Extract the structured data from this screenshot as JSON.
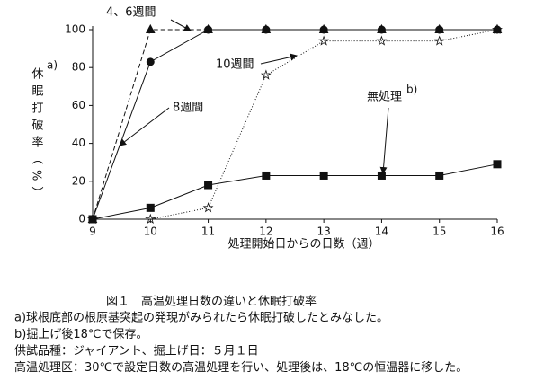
{
  "chart_data": {
    "type": "line",
    "title": "図１　高温処理日数の違いと休眠打破率",
    "xlabel": "処理開始日からの日数（週）",
    "ylabel": "休眠打破率（%）",
    "ylabel_note": "a)",
    "x": [
      9,
      10,
      11,
      12,
      13,
      14,
      15,
      16
    ],
    "xlim": [
      9,
      16
    ],
    "xticks": [
      9,
      10,
      11,
      12,
      13,
      14,
      15,
      16
    ],
    "ylim": [
      0,
      100
    ],
    "yticks": [
      0,
      20,
      40,
      60,
      80,
      100
    ],
    "series": [
      {
        "name": "4、6週間",
        "color": "#111111",
        "marker": "triangle",
        "dash": "5,3",
        "values": [
          0,
          100,
          100,
          100,
          100,
          100,
          100,
          100
        ]
      },
      {
        "name": "8週間",
        "color": "#111111",
        "marker": "circle",
        "dash": "none",
        "values": [
          0,
          83,
          100,
          100,
          100,
          100,
          100,
          100
        ]
      },
      {
        "name": "10週間",
        "color": "#111111",
        "marker": "star",
        "dash": "1,2",
        "values": [
          0,
          0,
          6,
          76,
          94,
          94,
          94,
          100
        ]
      },
      {
        "name": "無処理",
        "color": "#111111",
        "marker": "square",
        "dash": "none",
        "values": [
          0,
          6,
          18,
          23,
          23,
          23,
          23,
          29
        ]
      }
    ],
    "series_note": "b)",
    "notes": [
      "a)球根底部の根原基突起の発現がみられたら休眠打破したとみなした。",
      "b)掘上げ後18℃で保存。",
      "供試品種：ジャイアント、掘上げ日：５月１日",
      "高温処理区：30℃で設定日数の高温処理を行い、処理後は、18℃の恒温器に移した。"
    ]
  }
}
